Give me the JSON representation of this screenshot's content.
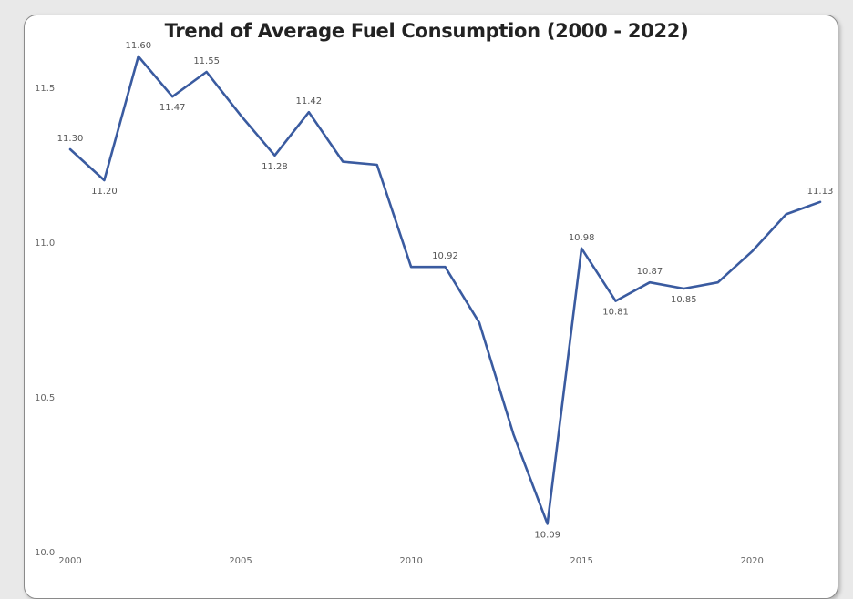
{
  "chart_data": {
    "type": "line",
    "title": "Trend of Average Fuel Consumption (2000 - 2022)",
    "xlabel": "",
    "ylabel": "",
    "x": [
      2000,
      2001,
      2002,
      2003,
      2004,
      2005,
      2006,
      2007,
      2008,
      2009,
      2010,
      2011,
      2012,
      2013,
      2014,
      2015,
      2016,
      2017,
      2018,
      2019,
      2020,
      2021,
      2022
    ],
    "series": [
      {
        "values": [
          11.3,
          11.2,
          11.6,
          11.47,
          11.55,
          11.41,
          11.28,
          11.42,
          11.26,
          11.25,
          10.92,
          10.92,
          10.74,
          10.38,
          10.09,
          10.98,
          10.81,
          10.87,
          10.85,
          10.87,
          10.97,
          11.09,
          11.13
        ],
        "labels": [
          "11.30",
          "11.20",
          "11.60",
          "11.47",
          "11.55",
          "",
          "11.28",
          "11.42",
          "",
          "",
          "",
          "10.92",
          "",
          "",
          "10.09",
          "10.98",
          "10.81",
          "10.87",
          "10.85",
          "",
          "",
          "",
          "11.13"
        ],
        "label_pos": [
          "above",
          "below",
          "above",
          "below",
          "above",
          "",
          "below",
          "above",
          "",
          "",
          "",
          "above",
          "",
          "",
          "below",
          "above",
          "below",
          "above",
          "below",
          "",
          "",
          "",
          "above"
        ]
      }
    ],
    "xticks": [
      "2000",
      "2005",
      "2010",
      "2015",
      "2020"
    ],
    "xtick_values": [
      2000,
      2005,
      2010,
      2015,
      2020
    ],
    "yticks": [
      "10.0",
      "10.5",
      "11.0",
      "11.5"
    ],
    "ytick_values": [
      10.0,
      10.5,
      11.0,
      11.5
    ],
    "xlim": [
      2000,
      2022
    ],
    "ylim": [
      10.0,
      11.65
    ],
    "grid": false,
    "line_color": "#3A5BA0"
  }
}
